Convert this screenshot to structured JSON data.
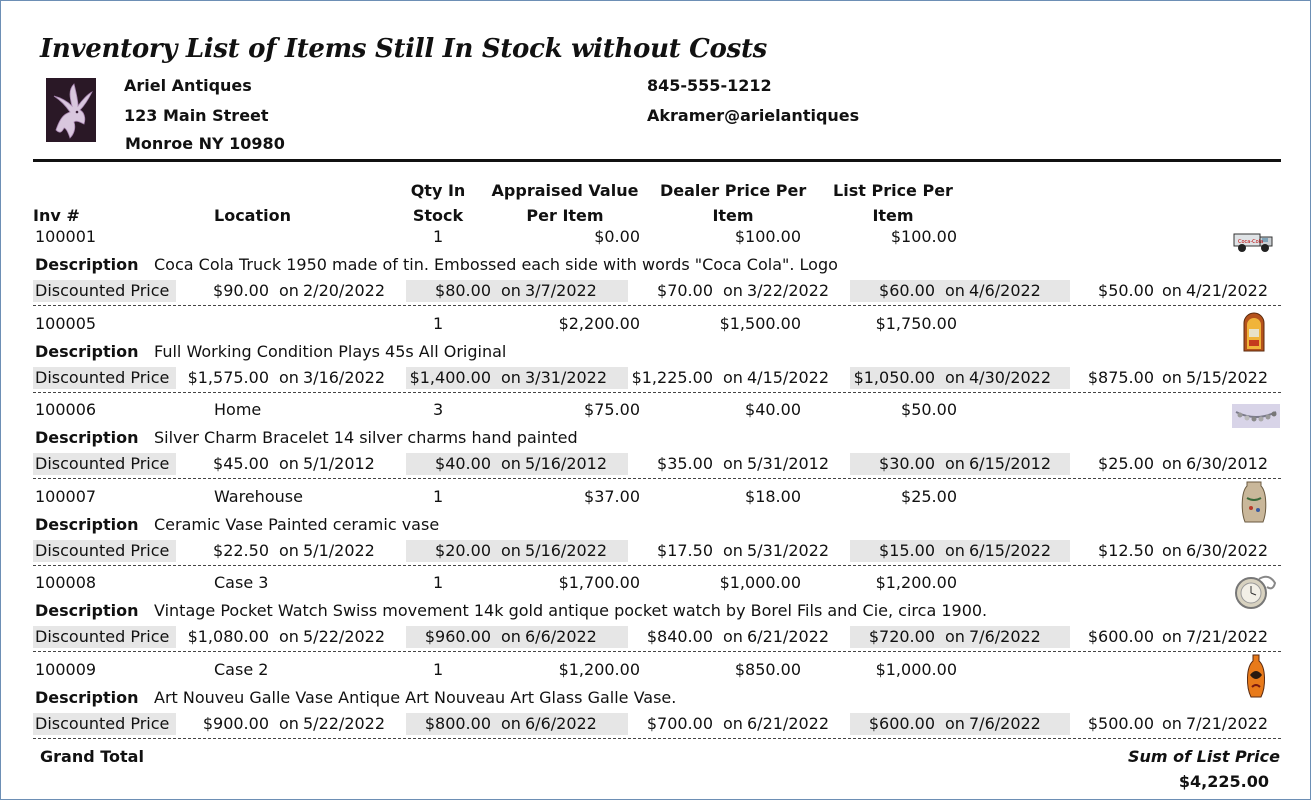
{
  "report": {
    "title": "Inventory List of Items Still In Stock without Costs",
    "business": {
      "name": "Ariel Antiques",
      "street": "123 Main Street",
      "city": "Monroe NY 10980",
      "phone": "845-555-1212",
      "email": "Akramer@arielantiques"
    }
  },
  "columns": {
    "inv": "Inv #",
    "location": "Location",
    "qty_1": "Qty In",
    "qty_2": "Stock",
    "appraised_1": "Appraised Value",
    "appraised_2": "Per Item",
    "dealer_1": "Dealer Price Per",
    "dealer_2": "Item",
    "list_1": "List Price Per",
    "list_2": "Item"
  },
  "labels": {
    "description": "Description",
    "discounted": "Discounted Price",
    "on": "on",
    "grand_total": "Grand Total",
    "sum_list": "Sum of List Price"
  },
  "items": [
    {
      "inv": "100001",
      "location": "",
      "qty": "1",
      "appraised": "$0.00",
      "dealer": "$100.00",
      "list": "$100.00",
      "description": "Coca Cola Truck 1950 made of tin.  Embossed each side with words \"Coca Cola\". Logo",
      "thumb": "truck-icon",
      "discounts": [
        {
          "price": "$90.00",
          "date": "2/20/2022"
        },
        {
          "price": "$80.00",
          "date": "3/7/2022"
        },
        {
          "price": "$70.00",
          "date": "3/22/2022"
        },
        {
          "price": "$60.00",
          "date": "4/6/2022"
        },
        {
          "price": "$50.00",
          "date": "4/21/2022"
        }
      ]
    },
    {
      "inv": "100005",
      "location": "",
      "qty": "1",
      "appraised": "$2,200.00",
      "dealer": "$1,500.00",
      "list": "$1,750.00",
      "description": "Full Working Condition Plays 45s All Original",
      "thumb": "jukebox-icon",
      "discounts": [
        {
          "price": "$1,575.00",
          "date": "3/16/2022"
        },
        {
          "price": "$1,400.00",
          "date": "3/31/2022"
        },
        {
          "price": "$1,225.00",
          "date": "4/15/2022"
        },
        {
          "price": "$1,050.00",
          "date": "4/30/2022"
        },
        {
          "price": "$875.00",
          "date": "5/15/2022"
        }
      ]
    },
    {
      "inv": "100006",
      "location": "Home",
      "qty": "3",
      "appraised": "$75.00",
      "dealer": "$40.00",
      "list": "$50.00",
      "description": "Silver Charm Bracelet 14 silver charms hand painted",
      "thumb": "bracelet-icon",
      "discounts": [
        {
          "price": "$45.00",
          "date": "5/1/2012"
        },
        {
          "price": "$40.00",
          "date": "5/16/2012"
        },
        {
          "price": "$35.00",
          "date": "5/31/2012"
        },
        {
          "price": "$30.00",
          "date": "6/15/2012"
        },
        {
          "price": "$25.00",
          "date": "6/30/2012"
        }
      ]
    },
    {
      "inv": "100007",
      "location": "Warehouse",
      "qty": "1",
      "appraised": "$37.00",
      "dealer": "$18.00",
      "list": "$25.00",
      "description": "Ceramic Vase Painted ceramic vase",
      "thumb": "vase-icon",
      "discounts": [
        {
          "price": "$22.50",
          "date": "5/1/2022"
        },
        {
          "price": "$20.00",
          "date": "5/16/2022"
        },
        {
          "price": "$17.50",
          "date": "5/31/2022"
        },
        {
          "price": "$15.00",
          "date": "6/15/2022"
        },
        {
          "price": "$12.50",
          "date": "6/30/2022"
        }
      ]
    },
    {
      "inv": "100008",
      "location": "Case 3",
      "qty": "1",
      "appraised": "$1,700.00",
      "dealer": "$1,000.00",
      "list": "$1,200.00",
      "description": "Vintage Pocket Watch Swiss movement 14k gold antique pocket watch by Borel Fils and Cie, circa 1900.",
      "thumb": "pocket-watch-icon",
      "discounts": [
        {
          "price": "$1,080.00",
          "date": "5/22/2022"
        },
        {
          "price": "$960.00",
          "date": "6/6/2022"
        },
        {
          "price": "$840.00",
          "date": "6/21/2022"
        },
        {
          "price": "$720.00",
          "date": "7/6/2022"
        },
        {
          "price": "$600.00",
          "date": "7/21/2022"
        }
      ]
    },
    {
      "inv": "100009",
      "location": "Case 2",
      "qty": "1",
      "appraised": "$1,200.00",
      "dealer": "$850.00",
      "list": "$1,000.00",
      "description": "Art Nouveu Galle Vase Antique Art Nouveau Art Glass Galle Vase.",
      "thumb": "galle-vase-icon",
      "discounts": [
        {
          "price": "$900.00",
          "date": "5/22/2022"
        },
        {
          "price": "$800.00",
          "date": "6/6/2022"
        },
        {
          "price": "$700.00",
          "date": "6/21/2022"
        },
        {
          "price": "$600.00",
          "date": "7/6/2022"
        },
        {
          "price": "$500.00",
          "date": "7/21/2022"
        }
      ]
    }
  ],
  "totals": {
    "sum_list_price": "$4,225.00"
  }
}
